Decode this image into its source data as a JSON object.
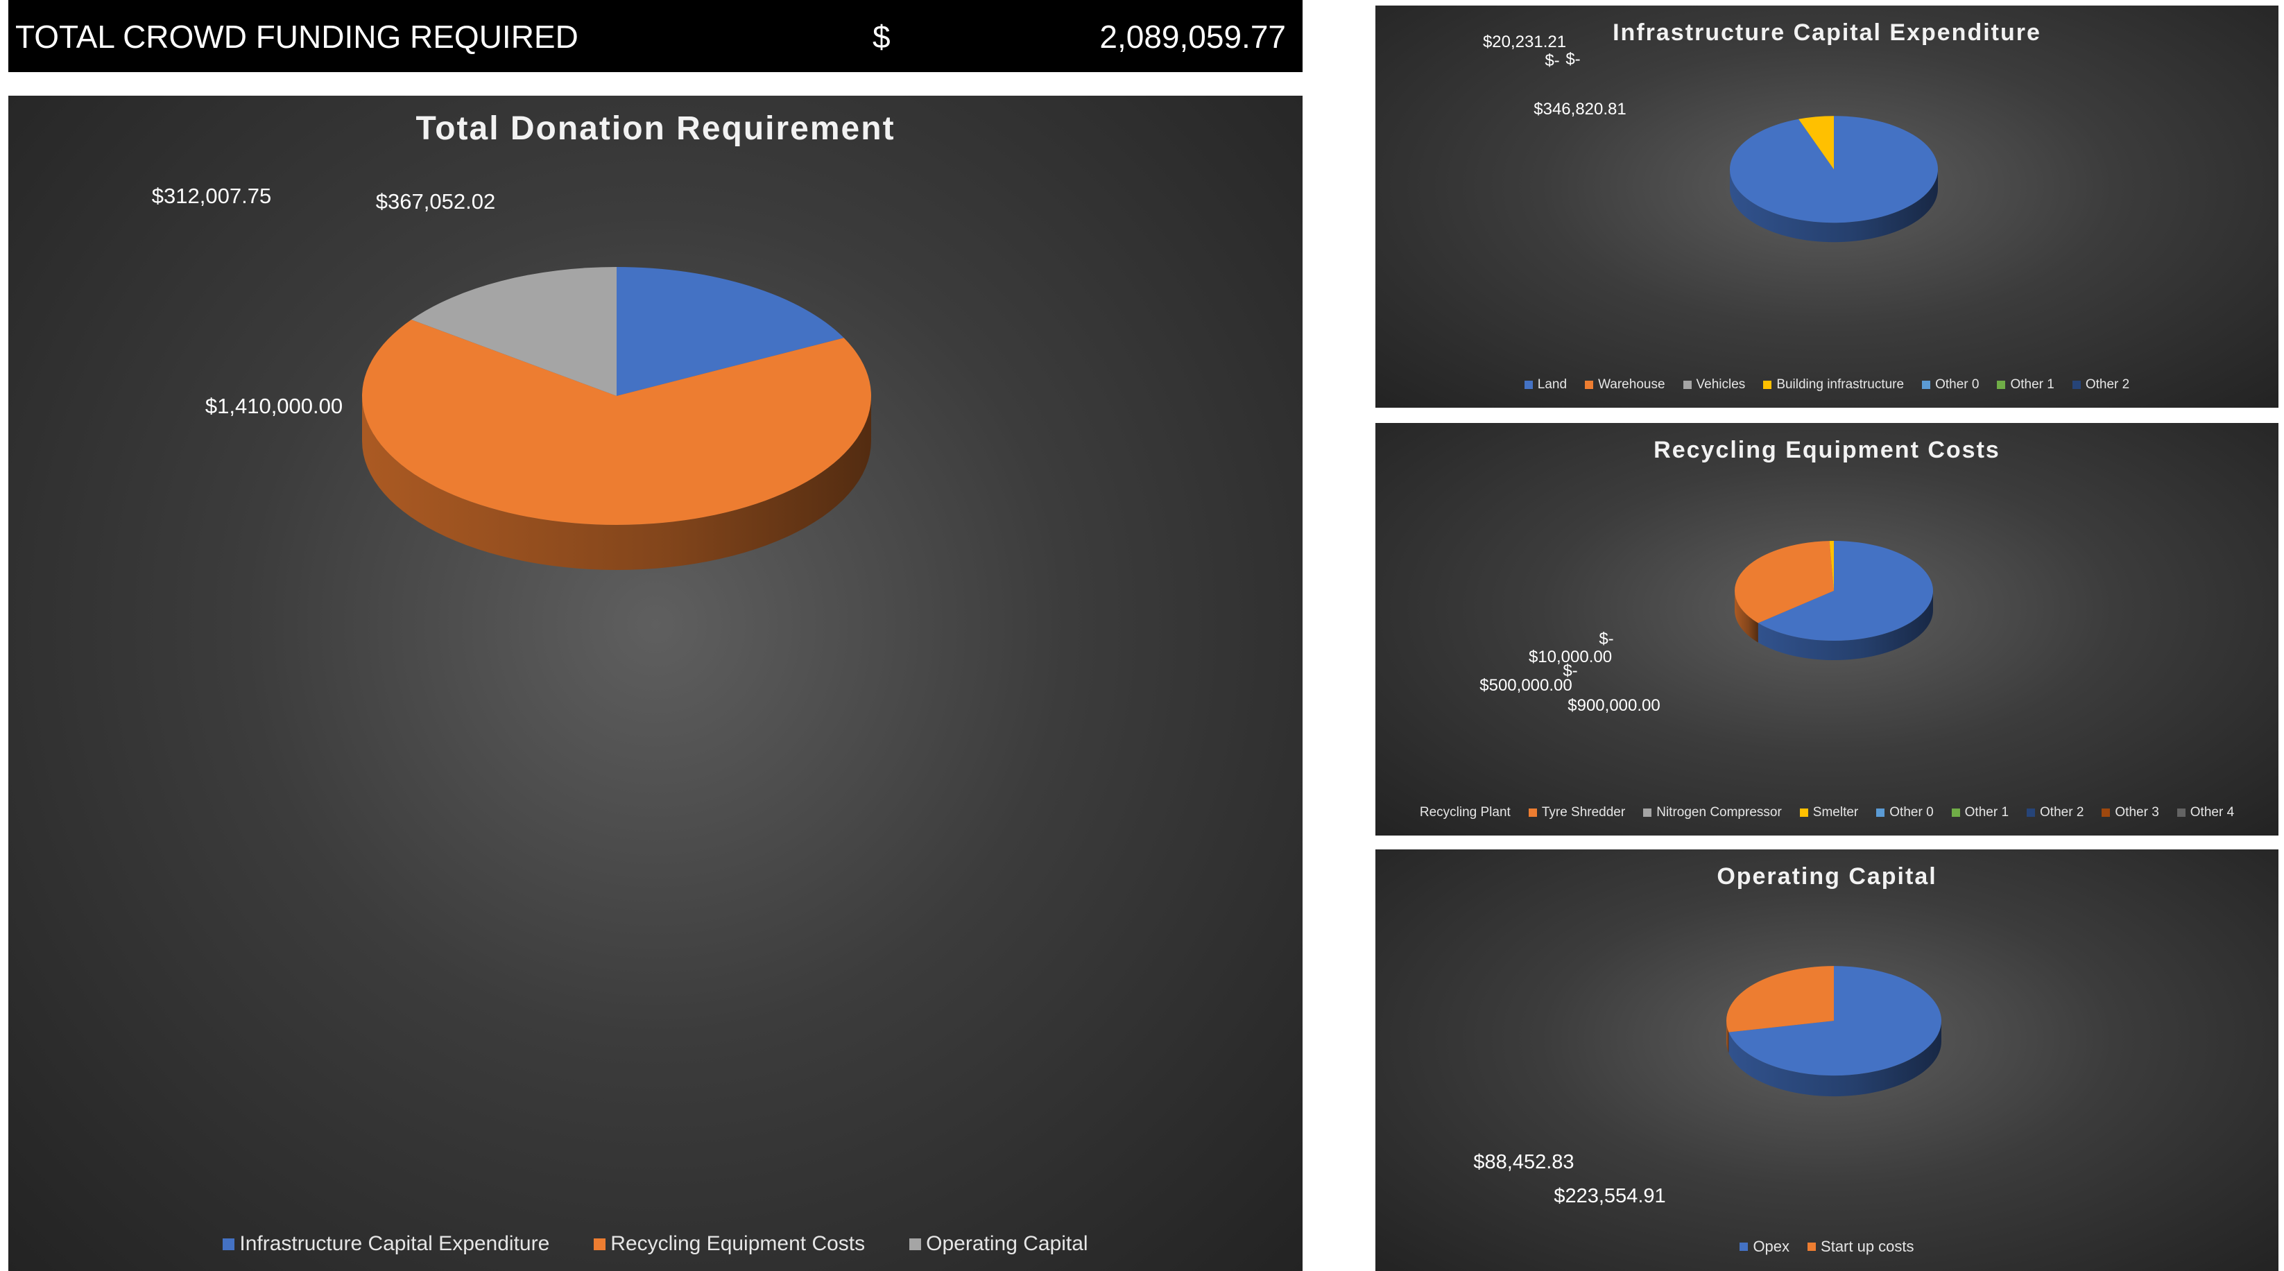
{
  "header": {
    "label": "TOTAL CROWD FUNDING REQUIRED",
    "currency": "$",
    "amount": "2,089,059.77"
  },
  "chart_data": [
    {
      "id": "main",
      "type": "pie",
      "title": "Total Donation Requirement",
      "categories": [
        "Infrastructure Capital Expenditure",
        "Recycling Equipment Costs",
        "Operating Capital"
      ],
      "values": [
        367052.02,
        1410000.0,
        312007.75
      ],
      "colors": [
        "#4472c4",
        "#ed7d31",
        "#a5a5a5"
      ],
      "legend_position": "bottom",
      "data_labels": [
        {
          "text": "$367,052.02",
          "series": "Infrastructure Capital Expenditure"
        },
        {
          "text": "$1,410,000.00",
          "series": "Recycling Equipment Costs"
        },
        {
          "text": "$312,007.75",
          "series": "Operating Capital"
        }
      ]
    },
    {
      "id": "infra",
      "type": "pie",
      "title": "Infrastructure Capital Expenditure",
      "categories": [
        "Land",
        "Warehouse",
        "Vehicles",
        "Building infrastructure",
        "Other 0",
        "Other 1",
        "Other 2"
      ],
      "values": [
        346820.81,
        0,
        0,
        20231.21,
        0,
        0,
        0
      ],
      "colors": [
        "#4472c4",
        "#ed7d31",
        "#a5a5a5",
        "#ffc000",
        "#5b9bd5",
        "#70ad47",
        "#264478"
      ],
      "legend_position": "bottom",
      "data_labels": [
        {
          "text": "$346,820.81",
          "series": "Land"
        },
        {
          "text": "$20,231.21",
          "series": "Building infrastructure"
        },
        {
          "text": "$-",
          "series": "Warehouse"
        },
        {
          "text": "$-",
          "series": "Vehicles"
        }
      ]
    },
    {
      "id": "recyc",
      "type": "pie",
      "title": "Recycling Equipment Costs",
      "categories": [
        "Recycling Plant",
        "Tyre Shredder",
        "Nitrogen Compressor",
        "Smelter",
        "Other 0",
        "Other 1",
        "Other 2",
        "Other 3",
        "Other 4"
      ],
      "values": [
        900000.0,
        500000.0,
        0,
        10000.0,
        0,
        0,
        0,
        0,
        0
      ],
      "colors": [
        "#4472c4",
        "#ed7d31",
        "#a5a5a5",
        "#ffc000",
        "#5b9bd5",
        "#70ad47",
        "#264478",
        "#9e480e",
        "#636363"
      ],
      "legend_position": "bottom",
      "data_labels": [
        {
          "text": "$900,000.00",
          "series": "Recycling Plant"
        },
        {
          "text": "$500,000.00",
          "series": "Tyre Shredder"
        },
        {
          "text": "$10,000.00",
          "series": "Smelter"
        },
        {
          "text": "$-",
          "series": "Nitrogen Compressor"
        },
        {
          "text": "$-",
          "series": "Other 0"
        }
      ]
    },
    {
      "id": "opcap",
      "type": "pie",
      "title": "Operating Capital",
      "categories": [
        "Opex",
        "Start up costs"
      ],
      "values": [
        223554.91,
        88452.83
      ],
      "colors": [
        "#4472c4",
        "#ed7d31"
      ],
      "legend_position": "bottom",
      "data_labels": [
        {
          "text": "$223,554.91",
          "series": "Opex"
        },
        {
          "text": "$88,452.83",
          "series": "Start up costs"
        }
      ]
    }
  ]
}
